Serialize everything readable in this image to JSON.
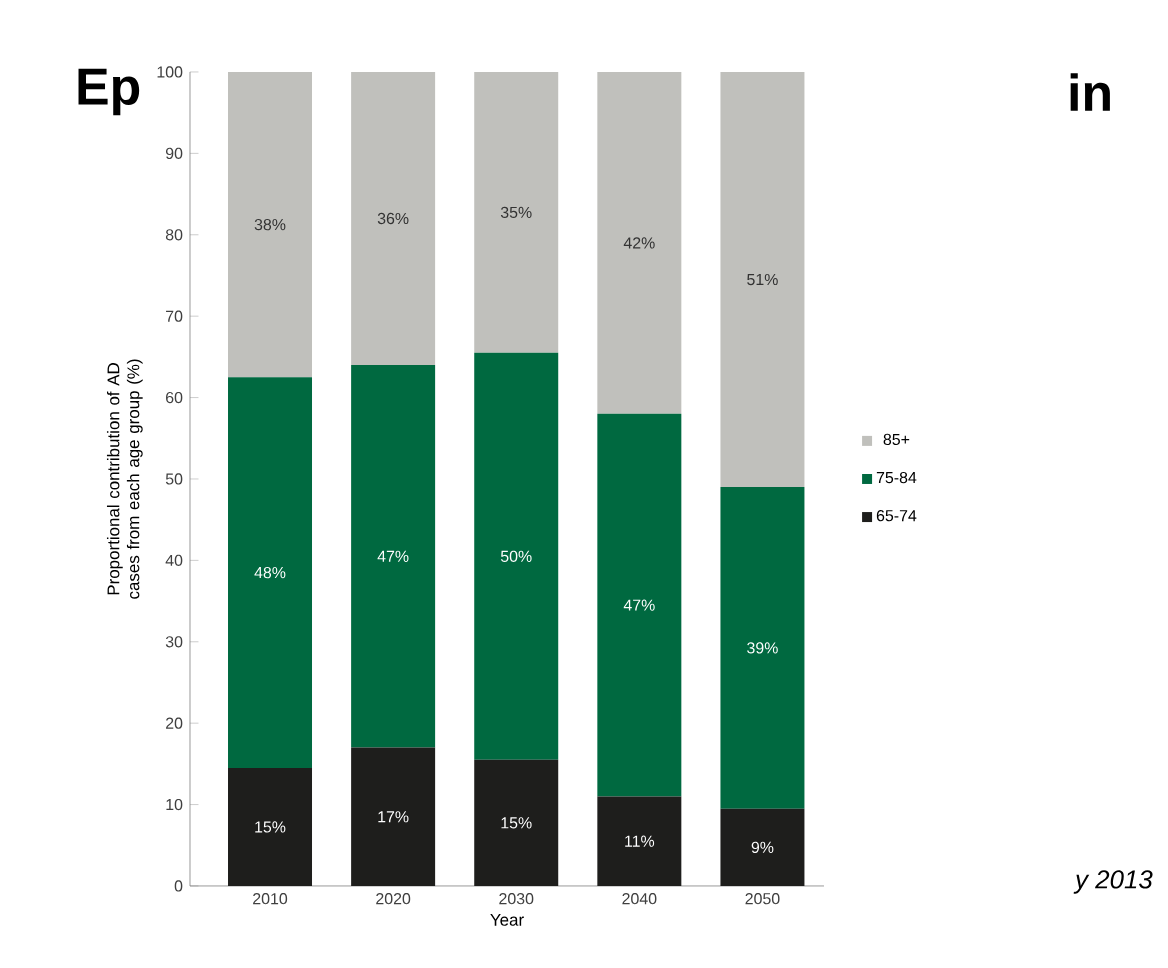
{
  "chart_data": {
    "type": "bar",
    "stacked": true,
    "xlabel": "Year",
    "ylabel": "Proportional contribution of AD cases from each age group (%)",
    "categories": [
      "2010",
      "2020",
      "2030",
      "2040",
      "2050"
    ],
    "series": [
      {
        "name": "65-74",
        "color": "#1e1e1c",
        "values": [
          14.5,
          17,
          15.5,
          11,
          9.5
        ],
        "value_labels": [
          "15%",
          "17%",
          "15%",
          "11%",
          "9%"
        ]
      },
      {
        "name": "75-84",
        "color": "#006940",
        "values": [
          48,
          47,
          50,
          47,
          39.5
        ],
        "value_labels": [
          "48%",
          "47%",
          "50%",
          "47%",
          "39%"
        ]
      },
      {
        "name": "85+",
        "color": "#c0c0bc",
        "values": [
          37.5,
          36,
          34.5,
          42,
          51
        ],
        "value_labels": [
          "38%",
          "36%",
          "35%",
          "42%",
          "51%"
        ]
      }
    ],
    "ylim": [
      0,
      100
    ],
    "yticks": [
      0,
      10,
      20,
      30,
      40,
      50,
      60,
      70,
      80,
      90,
      100
    ],
    "legend": "right",
    "grid": false,
    "annotations": [
      "Ep",
      "in",
      "y 2013"
    ]
  }
}
